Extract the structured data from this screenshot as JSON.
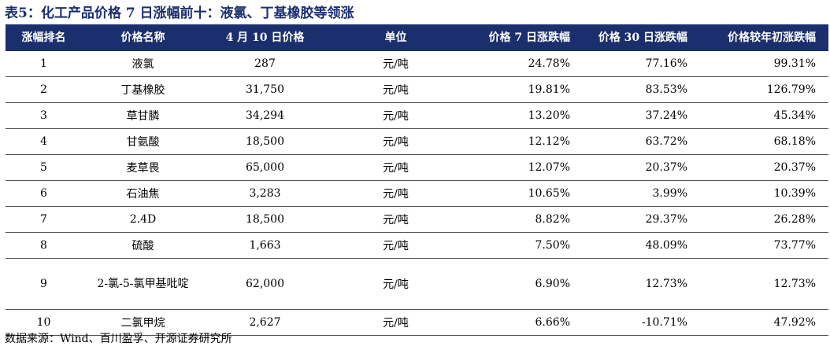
{
  "title": "表5：化工产品价格 7 日涨幅前十：液氯、丁基橡胶等领涨",
  "headers": [
    "涨幅排名",
    "价格名称",
    "4 月 10 日价格",
    "单位",
    "价格 7 日涨跌幅",
    "价格 30 日涨跌幅",
    "价格较年初涨跌幅"
  ],
  "rows": [
    {
      "rank": "1",
      "name": "液氯",
      "price": "287",
      "unit": "元/吨",
      "chg7": "24.78%",
      "chg30": "77.16%",
      "ytd": "99.31%"
    },
    {
      "rank": "2",
      "name": "丁基橡胶",
      "price": "31,750",
      "unit": "元/吨",
      "chg7": "19.81%",
      "chg30": "83.53%",
      "ytd": "126.79%"
    },
    {
      "rank": "3",
      "name": "草甘膦",
      "price": "34,294",
      "unit": "元/吨",
      "chg7": "13.20%",
      "chg30": "37.24%",
      "ytd": "45.34%"
    },
    {
      "rank": "4",
      "name": "甘氨酸",
      "price": "18,500",
      "unit": "元/吨",
      "chg7": "12.12%",
      "chg30": "63.72%",
      "ytd": "68.18%"
    },
    {
      "rank": "5",
      "name": "麦草畏",
      "price": "65,000",
      "unit": "元/吨",
      "chg7": "12.07%",
      "chg30": "20.37%",
      "ytd": "20.37%"
    },
    {
      "rank": "6",
      "name": "石油焦",
      "price": "3,283",
      "unit": "元/吨",
      "chg7": "10.65%",
      "chg30": "3.99%",
      "ytd": "10.39%"
    },
    {
      "rank": "7",
      "name": "2.4D",
      "price": "18,500",
      "unit": "元/吨",
      "chg7": "8.82%",
      "chg30": "29.37%",
      "ytd": "26.28%"
    },
    {
      "rank": "8",
      "name": "硫酸",
      "price": "1,663",
      "unit": "元/吨",
      "chg7": "7.50%",
      "chg30": "48.09%",
      "ytd": "73.77%"
    },
    {
      "rank": "9",
      "name": "2-氯-5-氯甲基吡啶",
      "price": "62,000",
      "unit": "元/吨",
      "chg7": "6.90%",
      "chg30": "12.73%",
      "ytd": "12.73%"
    },
    {
      "rank": "10",
      "name": "二氯甲烷",
      "price": "2,627",
      "unit": "元/吨",
      "chg7": "6.66%",
      "chg30": "-10.71%",
      "ytd": "47.92%"
    }
  ],
  "source": "数据来源：Wind、百川盈孚、开源证券研究所",
  "colors": {
    "header_bg": "#1b2f6e",
    "header_text": "#ffffff",
    "title": "#1b2f6e"
  }
}
